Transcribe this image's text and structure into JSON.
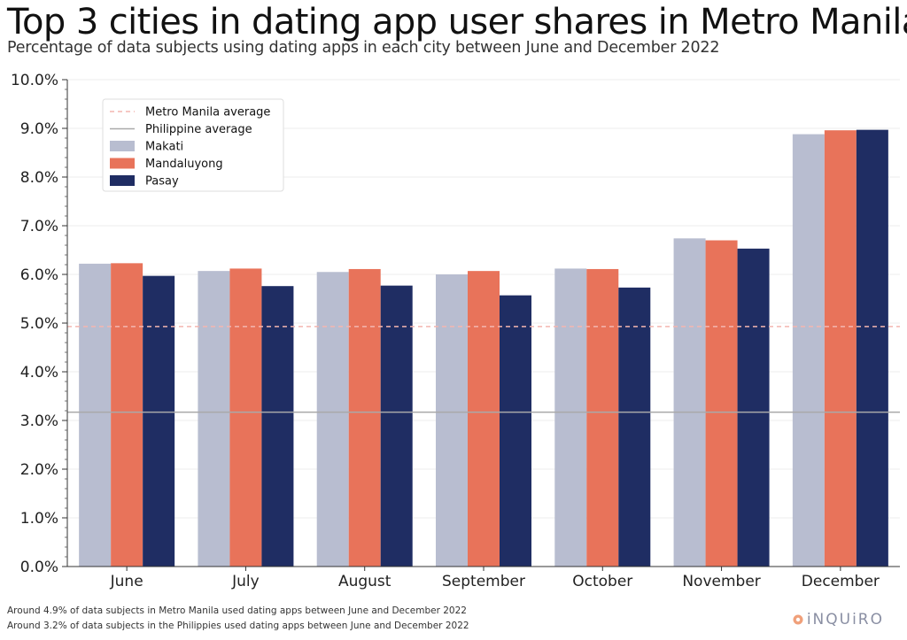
{
  "title": "Top 3 cities in dating app user shares in Metro Manila?",
  "subtitle": "Percentage of data subjects using dating apps in each city between June and December 2022",
  "footnotes": [
    "Around 4.9% of data subjects in Metro Manila used dating apps between June and December 2022",
    "Around 3.2% of data subjects in the Philippies used dating apps between June and December 2022"
  ],
  "brand": {
    "name": "iNQUiRO",
    "color": "#8a8fa3",
    "accent": "#f0a07a"
  },
  "chart_data": {
    "type": "bar",
    "categories": [
      "June",
      "July",
      "August",
      "September",
      "October",
      "November",
      "December"
    ],
    "series": [
      {
        "name": "Makati",
        "color": "#b8bdd0",
        "values": [
          6.22,
          6.07,
          6.05,
          6.0,
          6.12,
          6.74,
          8.88
        ]
      },
      {
        "name": "Mandaluyong",
        "color": "#e8735a",
        "values": [
          6.23,
          6.12,
          6.11,
          6.07,
          6.11,
          6.7,
          8.96
        ]
      },
      {
        "name": "Pasay",
        "color": "#1f2d63",
        "values": [
          5.97,
          5.76,
          5.77,
          5.57,
          5.73,
          6.53,
          8.97
        ]
      }
    ],
    "reference_lines": [
      {
        "name": "Metro Manila average",
        "value": 4.93,
        "style": "dashed",
        "color": "#f4b6b0"
      },
      {
        "name": "Philippine average",
        "value": 3.17,
        "style": "solid",
        "color": "#a9a9a9"
      }
    ],
    "ylim": [
      0,
      10
    ],
    "yticks": [
      0,
      1,
      2,
      3,
      4,
      5,
      6,
      7,
      8,
      9,
      10
    ],
    "ytick_labels": [
      "0.0%",
      "1.0%",
      "2.0%",
      "3.0%",
      "4.0%",
      "5.0%",
      "6.0%",
      "7.0%",
      "8.0%",
      "9.0%",
      "10.0%"
    ],
    "xlabel": "",
    "ylabel": "",
    "grid": "horizontal",
    "legend_position": "top-left"
  }
}
